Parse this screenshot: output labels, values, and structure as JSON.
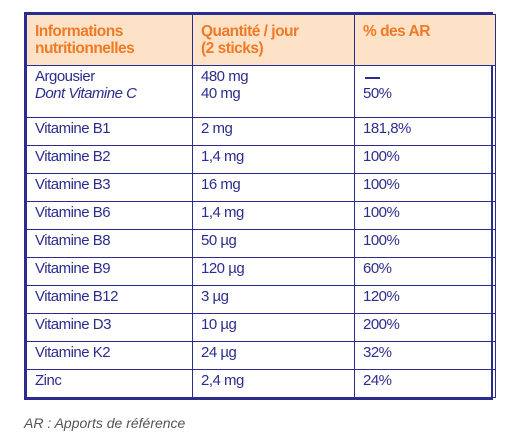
{
  "table": {
    "headers": [
      {
        "lines": [
          "Informations",
          "nutritionnelles"
        ]
      },
      {
        "lines": [
          "Quantité / jour",
          "(2 sticks)"
        ]
      },
      {
        "lines": [
          "% des AR"
        ]
      }
    ],
    "first_row": {
      "name_lines": [
        "Argousier",
        "Dont Vitamine C"
      ],
      "qty_lines": [
        "480 mg",
        "40 mg"
      ],
      "ar_lines": [
        "—",
        "50%"
      ]
    },
    "rows": [
      {
        "name": "Vitamine B1",
        "qty": "2 mg",
        "ar": "181,8%"
      },
      {
        "name": "Vitamine B2",
        "qty": "1,4 mg",
        "ar": "100%"
      },
      {
        "name": "Vitamine B3",
        "qty": "16 mg",
        "ar": "100%"
      },
      {
        "name": "Vitamine B6",
        "qty": "1,4 mg",
        "ar": "100%"
      },
      {
        "name": "Vitamine B8",
        "qty": "50 µg",
        "ar": "100%"
      },
      {
        "name": "Vitamine B9",
        "qty": "120 µg",
        "ar": "60%"
      },
      {
        "name": "Vitamine B12",
        "qty": "3 µg",
        "ar": "120%"
      },
      {
        "name": "Vitamine D3",
        "qty": "10 µg",
        "ar": "200%"
      },
      {
        "name": "Vitamine K2",
        "qty": "24 µg",
        "ar": "32%"
      },
      {
        "name": "Zinc",
        "qty": "2,4 mg",
        "ar": "24%"
      }
    ]
  },
  "footnote": "AR : Apports de référence",
  "colors": {
    "border": "#2b2d8e",
    "header_bg": "#fde2c8",
    "header_text": "#f07a24"
  }
}
